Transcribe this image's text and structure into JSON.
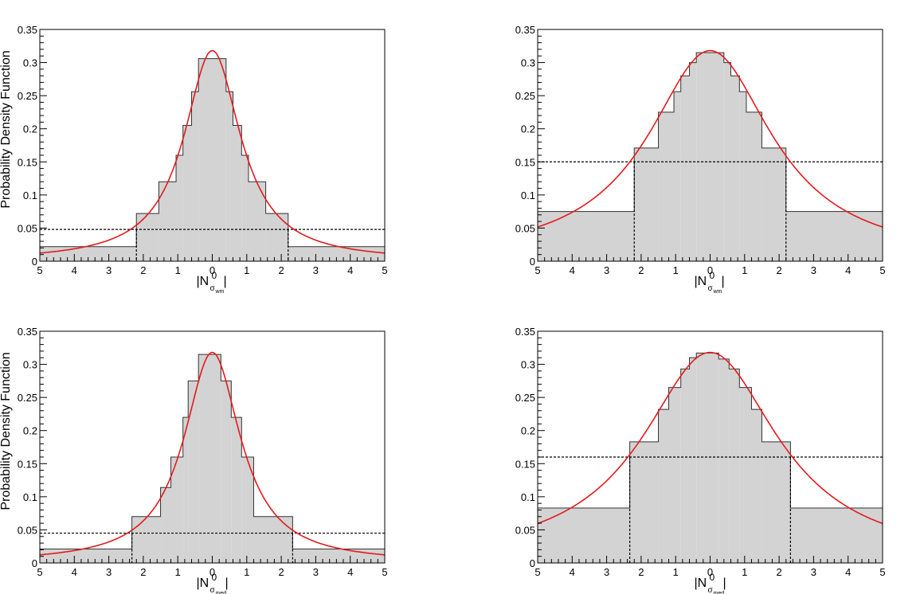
{
  "ylabel_text": "Probability Density Function",
  "colors": {
    "hist_fill": "#d3d3d3",
    "hist_line": "#333333",
    "curve": "#e41a1c",
    "axis": "#000000"
  },
  "chart_data": [
    {
      "type": "histogram",
      "ylabel": "Probability Density Function",
      "xlabel": {
        "main": "|N",
        "sup": "0",
        "sub_main": "σ",
        "sub_sub": "wm",
        "end": "|"
      },
      "xlim": [
        -5,
        5
      ],
      "ylim": [
        0,
        0.35
      ],
      "xticks": [
        "5",
        "4",
        "3",
        "2",
        "1",
        "0",
        "1",
        "2",
        "3",
        "4",
        "5"
      ],
      "yticks": [
        "0",
        "0.05",
        "0.1",
        "0.15",
        "0.2",
        "0.25",
        "0.3",
        "0.35"
      ],
      "bins": [
        [
          -5,
          -2.2,
          0.022
        ],
        [
          -2.2,
          -1.55,
          0.072
        ],
        [
          -1.55,
          -1.05,
          0.12
        ],
        [
          -1.05,
          -0.85,
          0.16
        ],
        [
          -0.85,
          -0.6,
          0.205
        ],
        [
          -0.6,
          -0.4,
          0.256
        ],
        [
          -0.4,
          0.4,
          0.306
        ],
        [
          0.4,
          0.6,
          0.256
        ],
        [
          0.6,
          0.85,
          0.205
        ],
        [
          0.85,
          1.05,
          0.16
        ],
        [
          1.05,
          1.55,
          0.12
        ],
        [
          1.55,
          2.2,
          0.072
        ],
        [
          2.2,
          5,
          0.022
        ]
      ],
      "curve": {
        "shape": "cauchy",
        "x0": 0,
        "gamma": 1.0,
        "peak": 0.318
      },
      "threshold": {
        "level": 0.048,
        "x": [
          -2.2,
          2.2
        ]
      }
    },
    {
      "type": "histogram",
      "ylabel": "",
      "xlabel": {
        "main": "|N",
        "sup": "0",
        "sub_main": "σ",
        "sub_sub": "wm",
        "end": "|"
      },
      "xlim": [
        -5,
        5
      ],
      "ylim": [
        0,
        0.35
      ],
      "xticks": [
        "5",
        "4",
        "3",
        "2",
        "1",
        "0",
        "1",
        "2",
        "3",
        "4",
        "5"
      ],
      "yticks": [
        "0",
        "0.05",
        "0.1",
        "0.15",
        "0.2",
        "0.25",
        "0.3",
        "0.35"
      ],
      "bins": [
        [
          -5,
          -2.2,
          0.075
        ],
        [
          -2.2,
          -1.5,
          0.171
        ],
        [
          -1.5,
          -1.05,
          0.225
        ],
        [
          -1.05,
          -0.85,
          0.256
        ],
        [
          -0.85,
          -0.6,
          0.28
        ],
        [
          -0.6,
          -0.4,
          0.3
        ],
        [
          -0.4,
          0.4,
          0.315
        ],
        [
          0.4,
          0.6,
          0.3
        ],
        [
          0.6,
          0.85,
          0.28
        ],
        [
          0.85,
          1.05,
          0.256
        ],
        [
          1.05,
          1.5,
          0.225
        ],
        [
          1.5,
          2.2,
          0.171
        ],
        [
          2.2,
          5,
          0.075
        ]
      ],
      "curve": {
        "shape": "gaussian",
        "x0": 0,
        "gamma": 2.2,
        "peak": 0.318
      },
      "threshold": {
        "level": 0.15,
        "x": [
          -2.2,
          2.2
        ]
      }
    },
    {
      "type": "histogram",
      "ylabel": "Probability Density Function",
      "xlabel": {
        "main": "|N",
        "sup": "0",
        "sub_main": "σ",
        "sub_sub": "med",
        "end": "|"
      },
      "xlim": [
        -5,
        5
      ],
      "ylim": [
        0,
        0.35
      ],
      "xticks": [
        "5",
        "4",
        "3",
        "2",
        "1",
        "0",
        "1",
        "2",
        "3",
        "4",
        "5"
      ],
      "yticks": [
        "0",
        "0.05",
        "0.1",
        "0.15",
        "0.2",
        "0.25",
        "0.3",
        "0.35"
      ],
      "bins": [
        [
          -5,
          -2.33,
          0.021
        ],
        [
          -2.33,
          -1.5,
          0.07
        ],
        [
          -1.5,
          -1.2,
          0.114
        ],
        [
          -1.2,
          -0.85,
          0.16
        ],
        [
          -0.85,
          -0.7,
          0.22
        ],
        [
          -0.7,
          -0.4,
          0.275
        ],
        [
          -0.4,
          0.25,
          0.315
        ],
        [
          0.25,
          0.55,
          0.275
        ],
        [
          0.55,
          0.85,
          0.22
        ],
        [
          0.85,
          1.2,
          0.16
        ],
        [
          1.2,
          2.33,
          0.07
        ],
        [
          2.33,
          5,
          0.021
        ]
      ],
      "curve": {
        "shape": "cauchy",
        "x0": 0,
        "gamma": 1.0,
        "peak": 0.318
      },
      "threshold": {
        "level": 0.045,
        "x": [
          -2.33,
          2.33
        ]
      }
    },
    {
      "type": "histogram",
      "ylabel": "",
      "xlabel": {
        "main": "|N",
        "sup": "0",
        "sub_main": "σ",
        "sub_sub": "med",
        "end": "|"
      },
      "xlim": [
        -5,
        5
      ],
      "ylim": [
        0,
        0.35
      ],
      "xticks": [
        "5",
        "4",
        "3",
        "2",
        "1",
        "0",
        "1",
        "2",
        "3",
        "4",
        "5"
      ],
      "yticks": [
        "0",
        "0.05",
        "0.1",
        "0.15",
        "0.2",
        "0.25",
        "0.3",
        "0.35"
      ],
      "bins": [
        [
          -5,
          -2.33,
          0.083
        ],
        [
          -2.33,
          -1.5,
          0.183
        ],
        [
          -1.5,
          -1.2,
          0.232
        ],
        [
          -1.2,
          -0.85,
          0.265
        ],
        [
          -0.85,
          -0.6,
          0.293
        ],
        [
          -0.6,
          -0.4,
          0.31
        ],
        [
          -0.4,
          0.25,
          0.317
        ],
        [
          0.25,
          0.55,
          0.308
        ],
        [
          0.55,
          0.85,
          0.293
        ],
        [
          0.85,
          1.2,
          0.265
        ],
        [
          1.2,
          1.5,
          0.232
        ],
        [
          1.5,
          2.33,
          0.183
        ],
        [
          2.33,
          5,
          0.083
        ]
      ],
      "curve": {
        "shape": "gaussian",
        "x0": 0,
        "gamma": 2.4,
        "peak": 0.318
      },
      "threshold": {
        "level": 0.16,
        "x": [
          -2.33,
          2.33
        ]
      }
    }
  ]
}
